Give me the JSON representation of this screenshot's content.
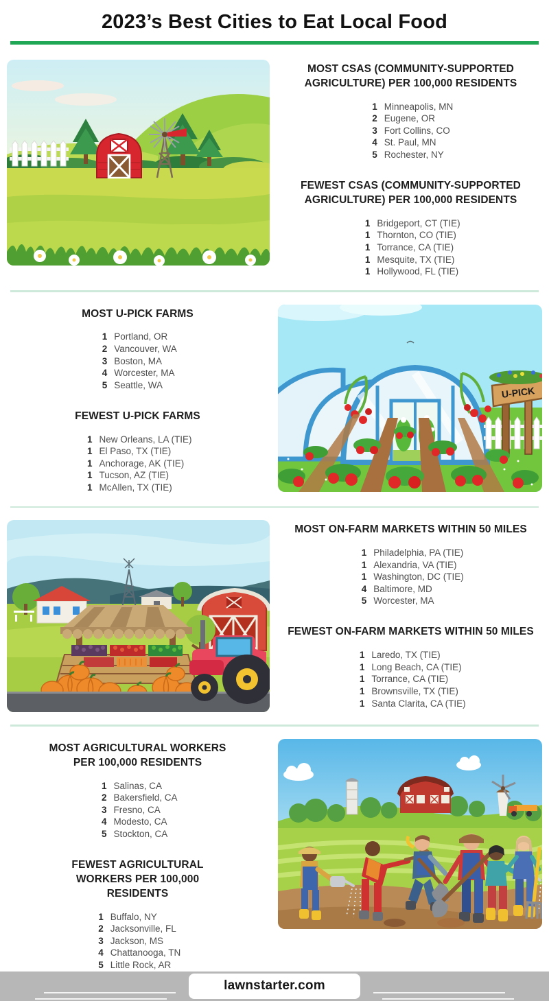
{
  "page": {
    "title": "2023’s Best Cities to Eat Local Food",
    "accent_color": "#1fa756",
    "divider_color": "#cde9d9"
  },
  "sections": [
    {
      "illustration": "farm-landscape-illustration",
      "lists": [
        {
          "heading": "MOST CSAS (COMMUNITY-SUPPORTED AGRICULTURE) PER 100,000 RESIDENTS",
          "items": [
            {
              "rank": "1",
              "city": "Minneapolis, MN"
            },
            {
              "rank": "2",
              "city": "Eugene, OR"
            },
            {
              "rank": "3",
              "city": "Fort Collins, CO"
            },
            {
              "rank": "4",
              "city": "St. Paul, MN"
            },
            {
              "rank": "5",
              "city": "Rochester, NY"
            }
          ]
        },
        {
          "heading": "FEWEST CSAS (COMMUNITY-SUPPORTED AGRICULTURE) PER 100,000 RESIDENTS",
          "items": [
            {
              "rank": "1",
              "city": "Bridgeport, CT (TIE)"
            },
            {
              "rank": "1",
              "city": "Thornton, CO (TIE)"
            },
            {
              "rank": "1",
              "city": "Torrance, CA (TIE)"
            },
            {
              "rank": "1",
              "city": "Mesquite, TX (TIE)"
            },
            {
              "rank": "1",
              "city": "Hollywood, FL (TIE)"
            }
          ]
        }
      ]
    },
    {
      "illustration": "upick-greenhouse-illustration",
      "lists": [
        {
          "heading": "MOST U-PICK FARMS",
          "items": [
            {
              "rank": "1",
              "city": "Portland, OR"
            },
            {
              "rank": "2",
              "city": "Vancouver, WA"
            },
            {
              "rank": "3",
              "city": "Boston, MA"
            },
            {
              "rank": "4",
              "city": "Worcester, MA"
            },
            {
              "rank": "5",
              "city": "Seattle, WA"
            }
          ]
        },
        {
          "heading": "FEWEST U-PICK FARMS",
          "items": [
            {
              "rank": "1",
              "city": "New Orleans, LA (TIE)"
            },
            {
              "rank": "1",
              "city": "El Paso, TX (TIE)"
            },
            {
              "rank": "1",
              "city": "Anchorage, AK (TIE)"
            },
            {
              "rank": "1",
              "city": "Tucson, AZ (TIE)"
            },
            {
              "rank": "1",
              "city": "McAllen, TX (TIE)"
            }
          ]
        }
      ]
    },
    {
      "illustration": "farm-market-illustration",
      "lists": [
        {
          "heading": "MOST ON-FARM MARKETS WITHIN 50 MILES",
          "items": [
            {
              "rank": "1",
              "city": "Philadelphia, PA (TIE)"
            },
            {
              "rank": "1",
              "city": "Alexandria, VA (TIE)"
            },
            {
              "rank": "1",
              "city": "Washington, DC (TIE)"
            },
            {
              "rank": "4",
              "city": "Baltimore, MD"
            },
            {
              "rank": "5",
              "city": "Worcester, MA"
            }
          ]
        },
        {
          "heading": "FEWEST ON-FARM MARKETS WITHIN 50 MILES",
          "items": [
            {
              "rank": "1",
              "city": "Laredo, TX (TIE)"
            },
            {
              "rank": "1",
              "city": "Long Beach, CA (TIE)"
            },
            {
              "rank": "1",
              "city": "Torrance, CA (TIE)"
            },
            {
              "rank": "1",
              "city": "Brownsville, TX (TIE)"
            },
            {
              "rank": "1",
              "city": "Santa Clarita, CA (TIE)"
            }
          ]
        }
      ]
    },
    {
      "illustration": "farm-workers-illustration",
      "lists": [
        {
          "heading": "MOST AGRICULTURAL WORKERS PER 100,000 RESIDENTS",
          "items": [
            {
              "rank": "1",
              "city": "Salinas, CA"
            },
            {
              "rank": "2",
              "city": "Bakersfield, CA"
            },
            {
              "rank": "3",
              "city": "Fresno, CA"
            },
            {
              "rank": "4",
              "city": "Modesto, CA"
            },
            {
              "rank": "5",
              "city": "Stockton, CA"
            }
          ]
        },
        {
          "heading": "FEWEST AGRICULTURAL WORKERS PER 100,000 RESIDENTS",
          "items": [
            {
              "rank": "1",
              "city": "Buffalo, NY"
            },
            {
              "rank": "2",
              "city": "Jacksonville, FL"
            },
            {
              "rank": "3",
              "city": "Jackson, MS"
            },
            {
              "rank": "4",
              "city": "Chattanooga, TN"
            },
            {
              "rank": "5",
              "city": "Little Rock, AR"
            }
          ]
        }
      ]
    }
  ],
  "illustrations": {
    "upick_sign_label": "U-PICK"
  },
  "footer": {
    "site_label": "lawnstarter.com",
    "bar_color": "#b7b7b7"
  }
}
